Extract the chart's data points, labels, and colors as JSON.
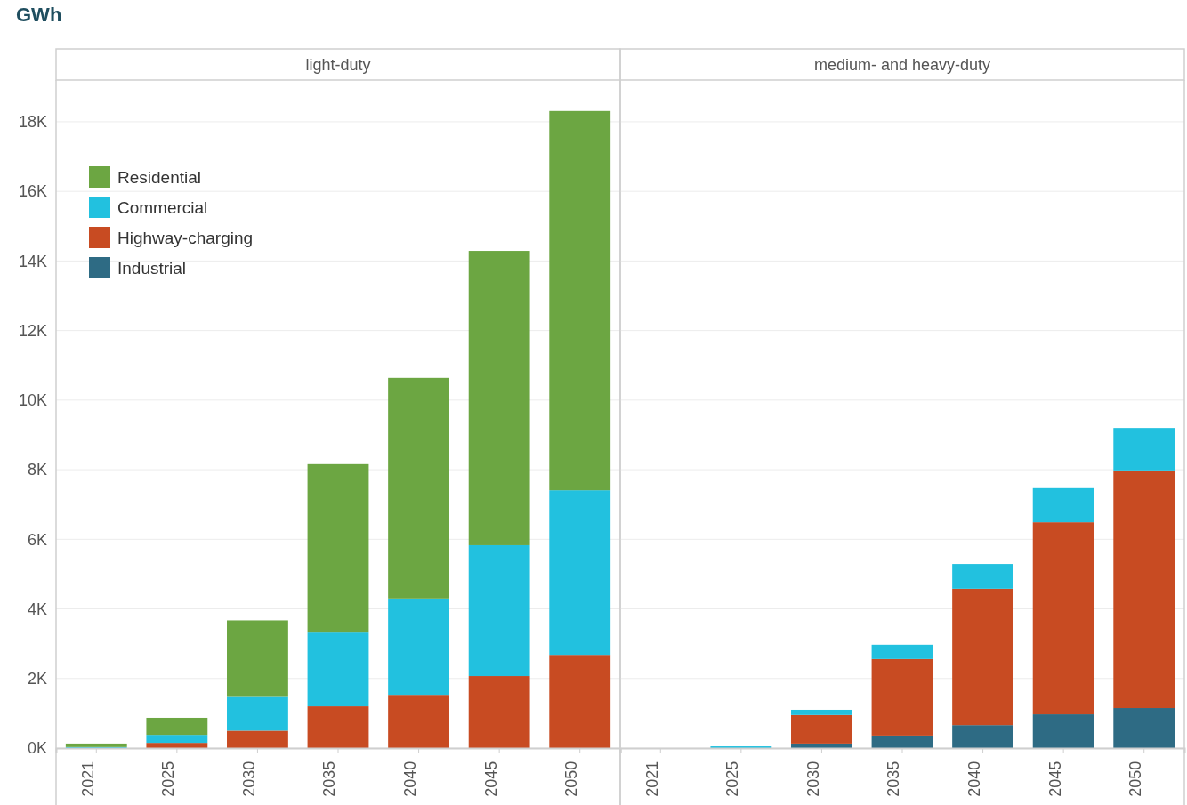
{
  "chart_data": [
    {
      "type": "bar",
      "stacked": true,
      "title": "light-duty",
      "ylabel": "GWh",
      "categories": [
        "2021",
        "2025",
        "2030",
        "2035",
        "2040",
        "2045",
        "2050"
      ],
      "ylim": [
        0,
        19200
      ],
      "yticks": [
        {
          "value": 0,
          "label": "0K"
        },
        {
          "value": 2000,
          "label": "2K"
        },
        {
          "value": 4000,
          "label": "4K"
        },
        {
          "value": 6000,
          "label": "6K"
        },
        {
          "value": 8000,
          "label": "8K"
        },
        {
          "value": 10000,
          "label": "10K"
        },
        {
          "value": 12000,
          "label": "12K"
        },
        {
          "value": 14000,
          "label": "14K"
        },
        {
          "value": 16000,
          "label": "16K"
        },
        {
          "value": 18000,
          "label": "18K"
        }
      ],
      "grid": "y",
      "legend": "top left",
      "series": [
        {
          "name": "Industrial",
          "color": "#2e6b84",
          "values": [
            0,
            0,
            0,
            0,
            0,
            0,
            0
          ]
        },
        {
          "name": "Highway-charging",
          "color": "#c84b22",
          "values": [
            0,
            150,
            500,
            1200,
            1530,
            2070,
            2680
          ]
        },
        {
          "name": "Commercial",
          "color": "#22c1df",
          "values": [
            30,
            230,
            970,
            2120,
            2770,
            3760,
            4730
          ]
        },
        {
          "name": "Residential",
          "color": "#6ca642",
          "values": [
            100,
            490,
            2200,
            4840,
            6340,
            8460,
            10900
          ]
        }
      ]
    },
    {
      "type": "bar",
      "stacked": true,
      "title": "medium- and heavy-duty",
      "categories": [
        "2021",
        "2025",
        "2030",
        "2035",
        "2040",
        "2045",
        "2050"
      ],
      "ylim": [
        0,
        19200
      ],
      "yticks": [
        0,
        2000,
        4000,
        6000,
        8000,
        10000,
        12000,
        14000,
        16000,
        18000
      ],
      "grid": "y",
      "tick_labels": "x",
      "series": [
        {
          "color": "#2e6b84",
          "values": [
            0,
            0,
            130,
            360,
            660,
            970,
            1150
          ]
        },
        {
          "color": "#c84b22",
          "values": [
            0,
            0,
            820,
            2200,
            3920,
            5520,
            6830
          ]
        },
        {
          "color": "#22c1df",
          "values": [
            0,
            50,
            150,
            410,
            710,
            980,
            1220
          ]
        },
        {
          "color": "#6ca642",
          "values": [
            0,
            0,
            0,
            0,
            0,
            0,
            0
          ]
        }
      ]
    }
  ]
}
